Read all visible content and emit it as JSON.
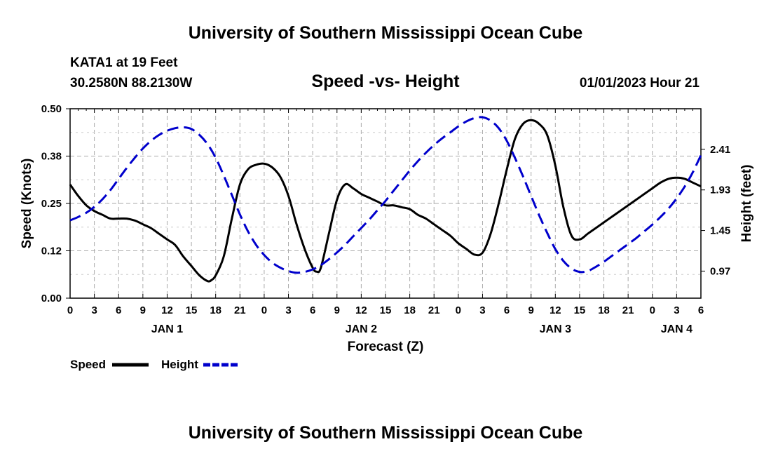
{
  "header": {
    "title": "University of Southern Mississippi Ocean Cube",
    "station": "KATA1 at 19 Feet",
    "coords": "30.2580N  88.2130W",
    "subtitle": "Speed -vs- Height",
    "datetime": "01/01/2023 Hour 21"
  },
  "footer": {
    "title": "University of Southern Mississippi Ocean Cube"
  },
  "legend": {
    "speed_label": "Speed",
    "height_label": "Height"
  },
  "colors": {
    "speed": "#000000",
    "height": "#0000cc",
    "grid": "#aaaaaa"
  },
  "chart_data": {
    "type": "line",
    "title": "Speed -vs- Height",
    "xlabel": "Forecast (Z)",
    "ylabel_left": "Speed (Knots)",
    "ylabel_right": "Height (feet)",
    "x_range_hours": [
      0,
      78
    ],
    "x_tick_step_hours": 3,
    "x_tick_labels": [
      "0",
      "3",
      "6",
      "9",
      "12",
      "15",
      "18",
      "21",
      "0",
      "3",
      "6",
      "9",
      "12",
      "15",
      "18",
      "21",
      "0",
      "3",
      "6",
      "9",
      "12",
      "15",
      "18",
      "21",
      "0",
      "3",
      "6"
    ],
    "day_labels": [
      {
        "label": "JAN 1",
        "hour": 12
      },
      {
        "label": "JAN 2",
        "hour": 36
      },
      {
        "label": "JAN 3",
        "hour": 60
      },
      {
        "label": "JAN 4",
        "hour": 75
      }
    ],
    "ylim_left": [
      0,
      0.5
    ],
    "ytick_left": [
      0,
      0.125,
      0.25,
      0.375,
      0.5
    ],
    "ytick_left_labels": [
      "0.00",
      "0.12",
      "0.25",
      "0.38",
      "0.50"
    ],
    "ylim_right": [
      0.65,
      2.89
    ],
    "ytick_right": [
      0.97,
      1.45,
      1.93,
      2.41
    ],
    "ytick_right_labels": [
      "0.97",
      "1.45",
      "1.93",
      "2.41"
    ],
    "series": [
      {
        "name": "Speed",
        "axis": "left",
        "style": "solid",
        "points": [
          [
            0,
            0.3
          ],
          [
            1,
            0.27
          ],
          [
            2,
            0.245
          ],
          [
            3,
            0.23
          ],
          [
            4,
            0.22
          ],
          [
            5,
            0.21
          ],
          [
            6,
            0.21
          ],
          [
            7,
            0.21
          ],
          [
            8,
            0.205
          ],
          [
            9,
            0.195
          ],
          [
            10,
            0.185
          ],
          [
            11,
            0.17
          ],
          [
            12,
            0.155
          ],
          [
            13,
            0.14
          ],
          [
            14,
            0.11
          ],
          [
            15,
            0.085
          ],
          [
            16,
            0.06
          ],
          [
            17,
            0.045
          ],
          [
            17.5,
            0.048
          ],
          [
            18,
            0.06
          ],
          [
            19,
            0.11
          ],
          [
            20,
            0.21
          ],
          [
            21,
            0.3
          ],
          [
            22,
            0.34
          ],
          [
            23,
            0.352
          ],
          [
            24,
            0.355
          ],
          [
            25,
            0.345
          ],
          [
            26,
            0.32
          ],
          [
            27,
            0.27
          ],
          [
            28,
            0.195
          ],
          [
            29,
            0.13
          ],
          [
            30,
            0.08
          ],
          [
            30.5,
            0.07
          ],
          [
            31,
            0.08
          ],
          [
            32,
            0.17
          ],
          [
            33,
            0.26
          ],
          [
            34,
            0.3
          ],
          [
            35,
            0.29
          ],
          [
            36,
            0.275
          ],
          [
            37,
            0.265
          ],
          [
            38,
            0.255
          ],
          [
            39,
            0.245
          ],
          [
            40,
            0.245
          ],
          [
            41,
            0.24
          ],
          [
            42,
            0.235
          ],
          [
            43,
            0.22
          ],
          [
            44,
            0.21
          ],
          [
            45,
            0.195
          ],
          [
            46,
            0.18
          ],
          [
            47,
            0.165
          ],
          [
            48,
            0.145
          ],
          [
            49,
            0.13
          ],
          [
            50,
            0.115
          ],
          [
            51,
            0.12
          ],
          [
            52,
            0.17
          ],
          [
            53,
            0.25
          ],
          [
            54,
            0.34
          ],
          [
            55,
            0.42
          ],
          [
            56,
            0.46
          ],
          [
            57,
            0.47
          ],
          [
            58,
            0.46
          ],
          [
            59,
            0.43
          ],
          [
            60,
            0.35
          ],
          [
            61,
            0.24
          ],
          [
            62,
            0.165
          ],
          [
            63,
            0.155
          ],
          [
            64,
            0.17
          ],
          [
            65,
            0.185
          ],
          [
            66,
            0.2
          ],
          [
            67,
            0.215
          ],
          [
            68,
            0.23
          ],
          [
            69,
            0.245
          ],
          [
            70,
            0.26
          ],
          [
            71,
            0.275
          ],
          [
            72,
            0.29
          ],
          [
            73,
            0.305
          ],
          [
            74,
            0.315
          ],
          [
            75,
            0.318
          ],
          [
            76,
            0.315
          ],
          [
            77,
            0.305
          ],
          [
            78,
            0.295
          ]
        ]
      },
      {
        "name": "Height",
        "axis": "right",
        "style": "dashed",
        "points": [
          [
            0,
            1.57
          ],
          [
            1,
            1.61
          ],
          [
            2,
            1.66
          ],
          [
            3,
            1.73
          ],
          [
            4,
            1.82
          ],
          [
            5,
            1.93
          ],
          [
            6,
            2.06
          ],
          [
            7,
            2.19
          ],
          [
            8,
            2.31
          ],
          [
            9,
            2.42
          ],
          [
            10,
            2.51
          ],
          [
            11,
            2.58
          ],
          [
            12,
            2.63
          ],
          [
            13,
            2.66
          ],
          [
            14,
            2.67
          ],
          [
            15,
            2.65
          ],
          [
            16,
            2.58
          ],
          [
            17,
            2.47
          ],
          [
            18,
            2.31
          ],
          [
            19,
            2.1
          ],
          [
            20,
            1.87
          ],
          [
            21,
            1.64
          ],
          [
            22,
            1.44
          ],
          [
            23,
            1.28
          ],
          [
            24,
            1.16
          ],
          [
            25,
            1.07
          ],
          [
            26,
            1.01
          ],
          [
            27,
            0.97
          ],
          [
            28,
            0.95
          ],
          [
            29,
            0.96
          ],
          [
            30,
            0.99
          ],
          [
            31,
            1.04
          ],
          [
            32,
            1.11
          ],
          [
            33,
            1.19
          ],
          [
            34,
            1.28
          ],
          [
            35,
            1.38
          ],
          [
            36,
            1.48
          ],
          [
            37,
            1.58
          ],
          [
            38,
            1.69
          ],
          [
            39,
            1.8
          ],
          [
            40,
            1.92
          ],
          [
            41,
            2.04
          ],
          [
            42,
            2.16
          ],
          [
            43,
            2.27
          ],
          [
            44,
            2.37
          ],
          [
            45,
            2.46
          ],
          [
            46,
            2.54
          ],
          [
            47,
            2.61
          ],
          [
            48,
            2.68
          ],
          [
            49,
            2.74
          ],
          [
            50,
            2.78
          ],
          [
            51,
            2.79
          ],
          [
            52,
            2.75
          ],
          [
            53,
            2.66
          ],
          [
            54,
            2.51
          ],
          [
            55,
            2.31
          ],
          [
            56,
            2.09
          ],
          [
            57,
            1.86
          ],
          [
            58,
            1.63
          ],
          [
            59,
            1.42
          ],
          [
            60,
            1.23
          ],
          [
            61,
            1.09
          ],
          [
            62,
            1.0
          ],
          [
            63,
            0.96
          ],
          [
            64,
            0.97
          ],
          [
            65,
            1.02
          ],
          [
            66,
            1.08
          ],
          [
            67,
            1.15
          ],
          [
            68,
            1.22
          ],
          [
            69,
            1.29
          ],
          [
            70,
            1.36
          ],
          [
            71,
            1.44
          ],
          [
            72,
            1.52
          ],
          [
            73,
            1.61
          ],
          [
            74,
            1.71
          ],
          [
            75,
            1.83
          ],
          [
            76,
            1.97
          ],
          [
            77,
            2.14
          ],
          [
            78,
            2.34
          ]
        ]
      }
    ]
  }
}
